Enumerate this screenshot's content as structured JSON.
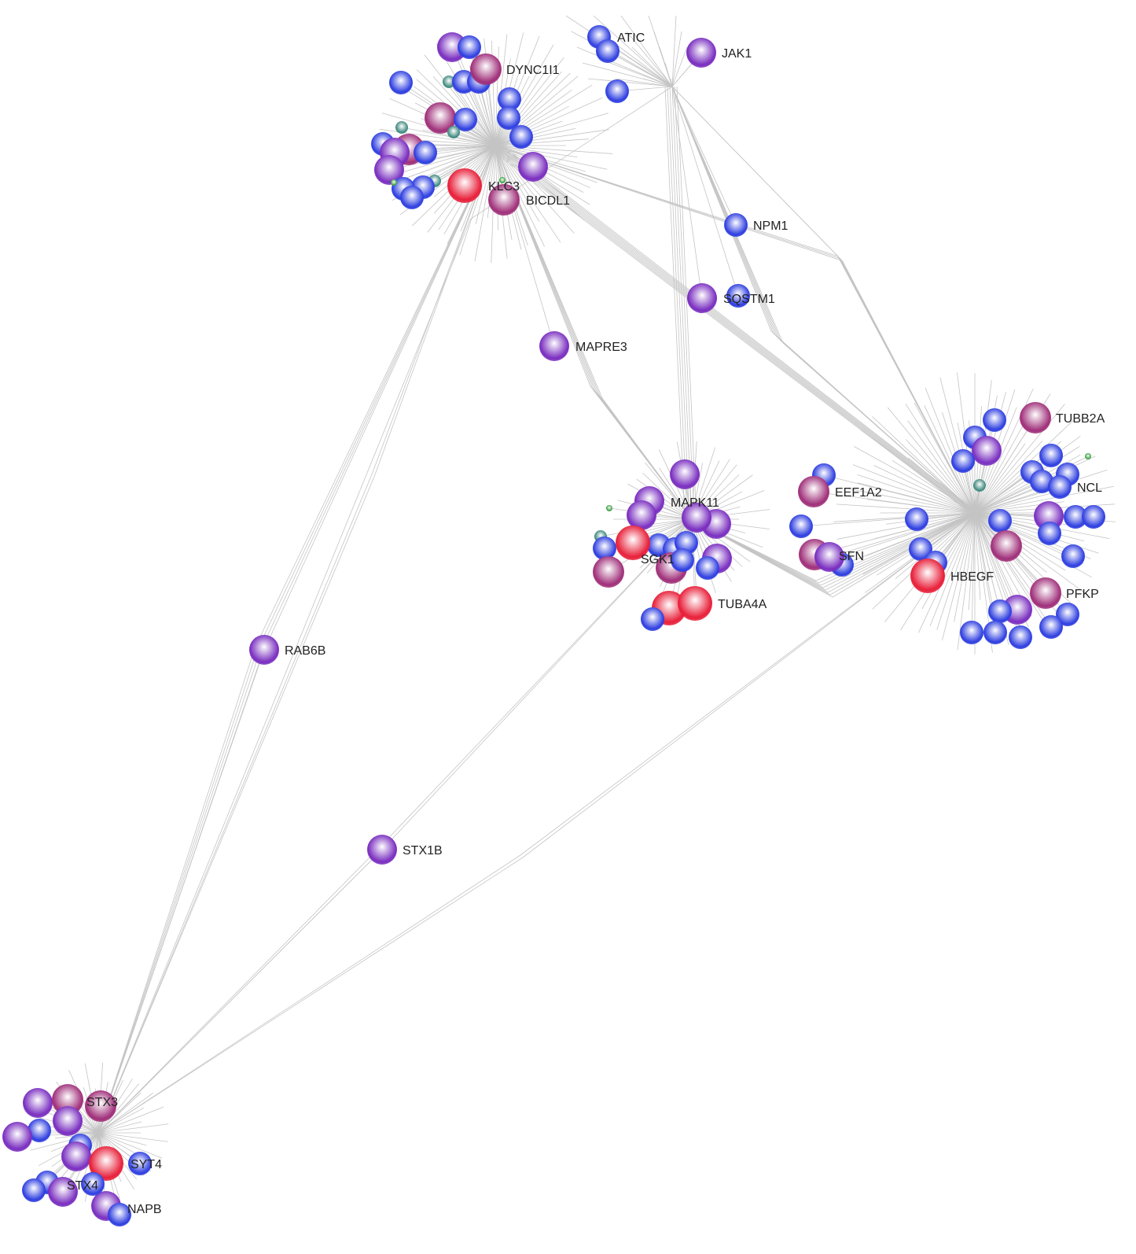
{
  "node_colors": {
    "red": "#e8203a",
    "magenta": "#a0307a",
    "purple": "#7a2fc0",
    "blue": "#2f3fe0",
    "teal": "#3f8a80",
    "green": "#3aa040"
  },
  "labeled_nodes": [
    {
      "label": "ATIC",
      "type": "blue"
    },
    {
      "label": "JAK1",
      "type": "purple"
    },
    {
      "label": "DYNC1I1",
      "type": "magenta"
    },
    {
      "label": "KLC3",
      "type": "red"
    },
    {
      "label": "BICDL1",
      "type": "magenta"
    },
    {
      "label": "NPM1",
      "type": "blue"
    },
    {
      "label": "SQSTM1",
      "type": "purple"
    },
    {
      "label": "MAPRE3",
      "type": "purple"
    },
    {
      "label": "MAPK11",
      "type": "purple"
    },
    {
      "label": "EEF1A2",
      "type": "magenta"
    },
    {
      "label": "SFN",
      "type": "purple"
    },
    {
      "label": "SGK1",
      "type": "red"
    },
    {
      "label": "TUBA4A",
      "type": "red"
    },
    {
      "label": "TUBB2A",
      "type": "magenta"
    },
    {
      "label": "NCL",
      "type": "blue"
    },
    {
      "label": "HBEGF",
      "type": "red"
    },
    {
      "label": "PFKP",
      "type": "magenta"
    },
    {
      "label": "RAB6B",
      "type": "purple"
    },
    {
      "label": "STX1B",
      "type": "purple"
    },
    {
      "label": "STX3",
      "type": "magenta"
    },
    {
      "label": "SYT4",
      "type": "blue"
    },
    {
      "label": "STX4",
      "type": "blue"
    },
    {
      "label": "NAPB",
      "type": "blue"
    }
  ]
}
